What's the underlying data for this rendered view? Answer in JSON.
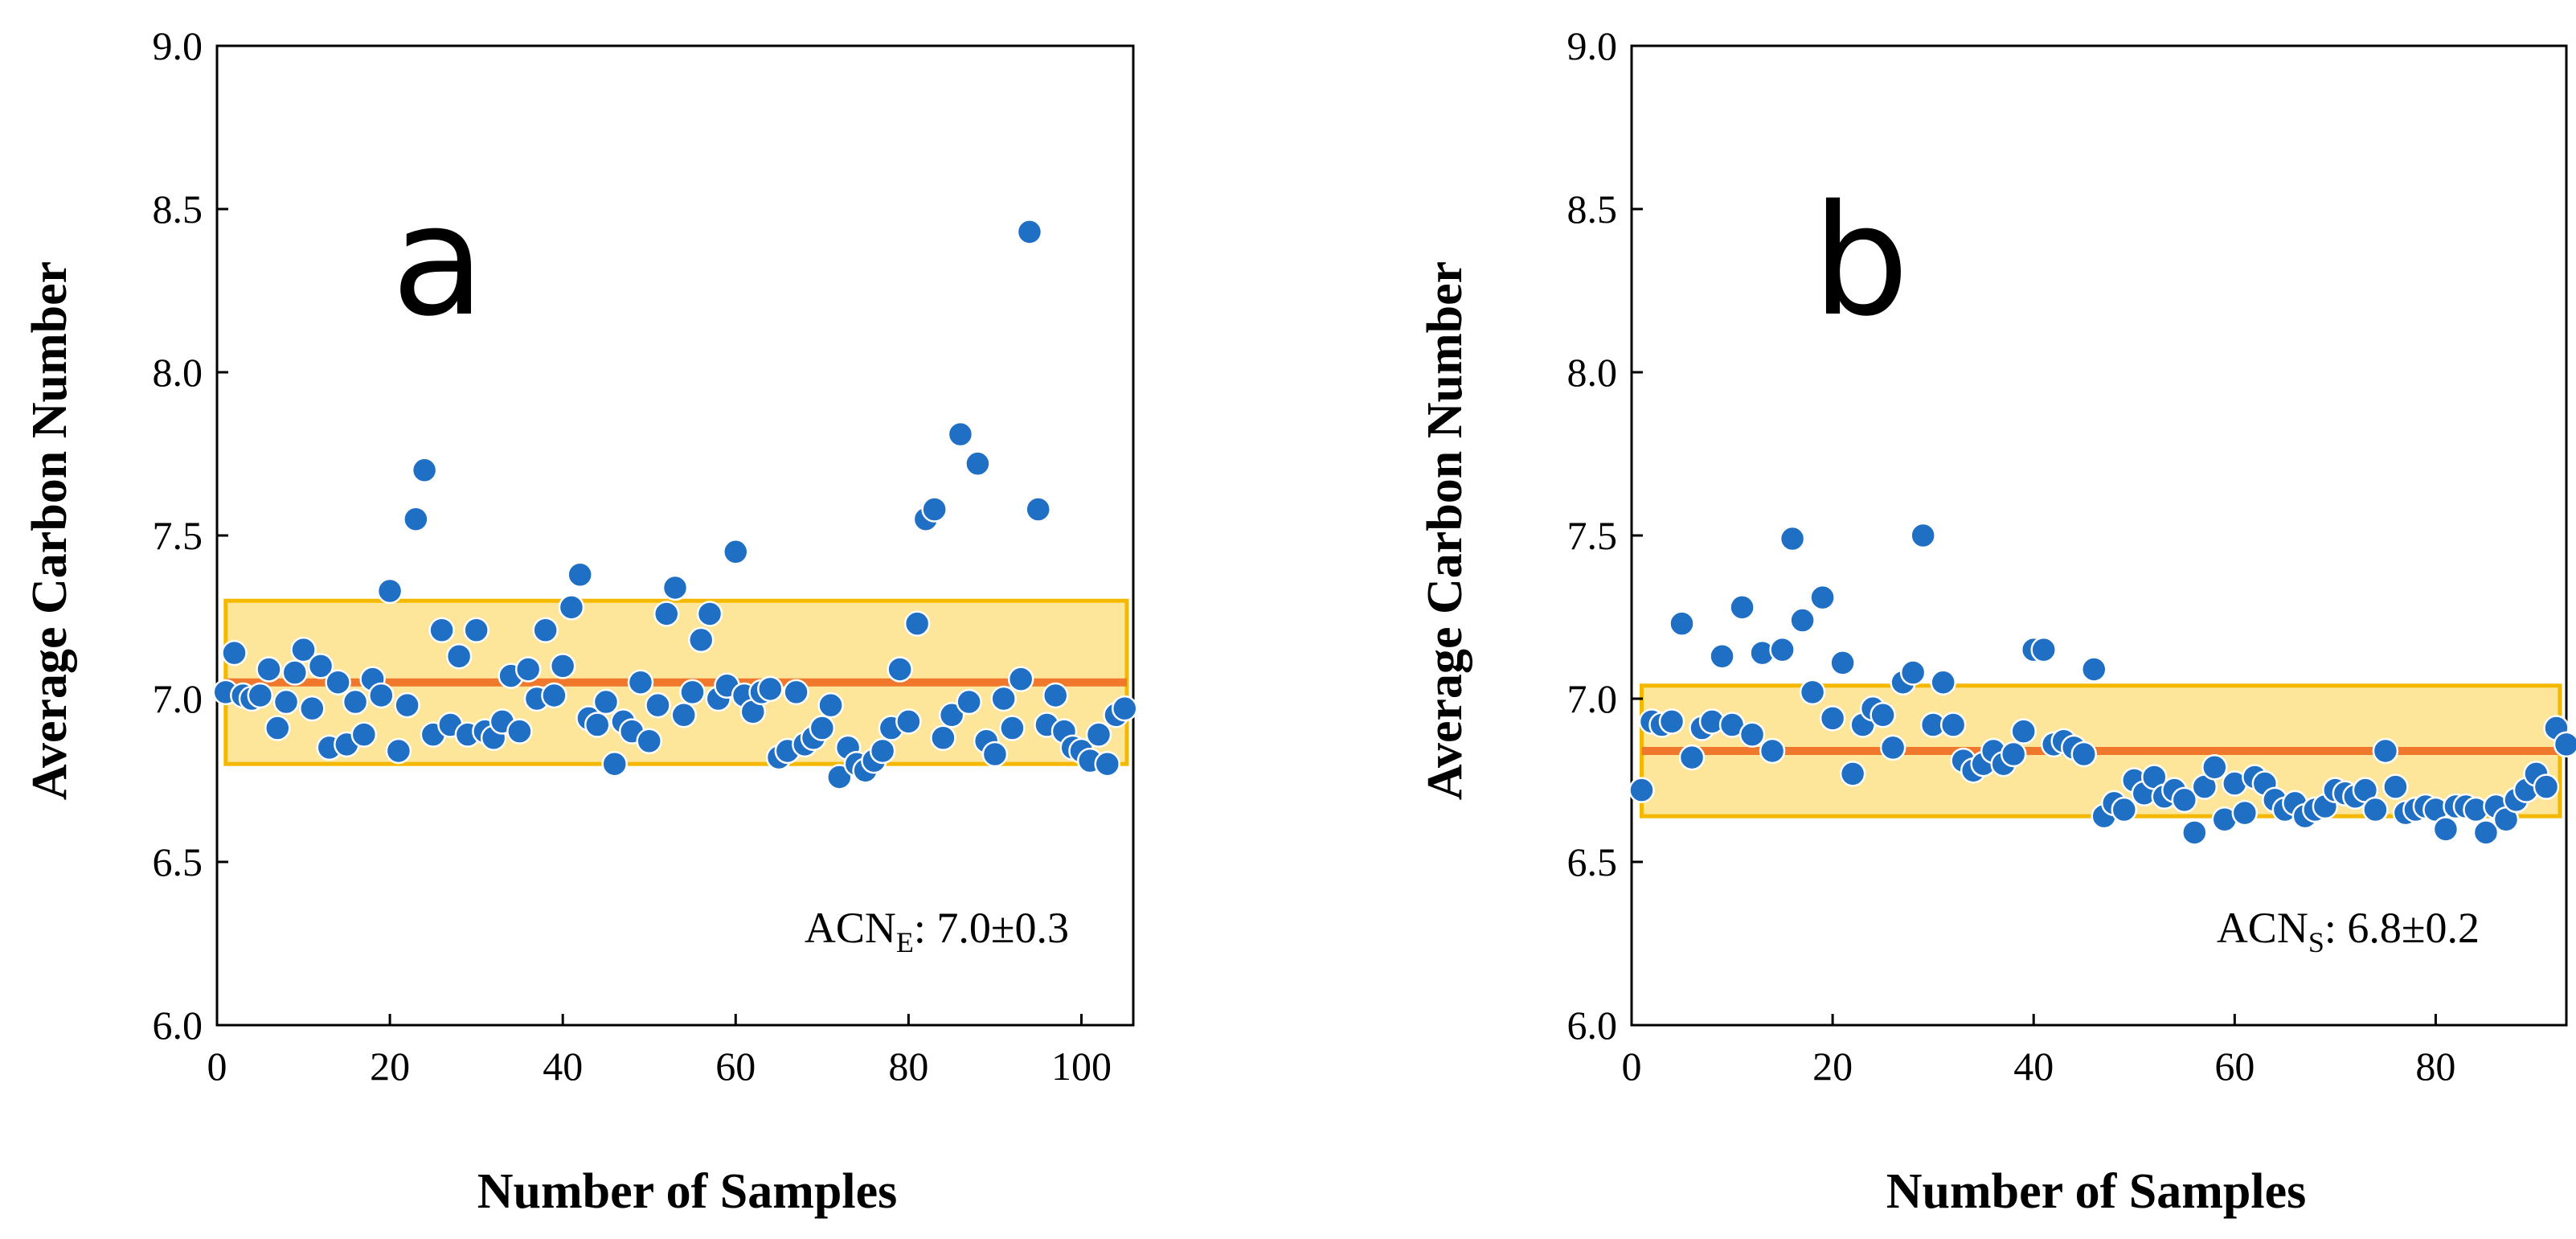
{
  "chart_data": [
    {
      "type": "scatter",
      "panel_label": "a",
      "xlabel": "Number of Samples",
      "ylabel": "Average Carbon Number",
      "xlim": [
        0,
        106
      ],
      "ylim": [
        6.0,
        9.0
      ],
      "xticks": [
        "0",
        "20",
        "40",
        "60",
        "80",
        "100"
      ],
      "yticks": [
        "6.0",
        "6.5",
        "7.0",
        "7.5",
        "8.0",
        "8.5",
        "9.0"
      ],
      "mean": 7.05,
      "band": [
        6.8,
        7.3
      ],
      "annotation": {
        "main": "ACN",
        "sub": "E",
        "rest": ": 7.0±0.3"
      },
      "point_color": "#1f6fc5",
      "band_fill": "#fde59a",
      "band_stroke": "#f5b800",
      "mean_color": "#f0782d",
      "x": [
        1,
        2,
        3,
        4,
        5,
        6,
        7,
        8,
        9,
        10,
        11,
        12,
        13,
        14,
        15,
        16,
        17,
        18,
        19,
        20,
        21,
        22,
        23,
        24,
        25,
        26,
        27,
        28,
        29,
        30,
        31,
        32,
        33,
        34,
        35,
        36,
        37,
        38,
        39,
        40,
        41,
        42,
        43,
        44,
        45,
        46,
        47,
        48,
        49,
        50,
        51,
        52,
        53,
        54,
        55,
        56,
        57,
        58,
        59,
        60,
        61,
        62,
        63,
        64,
        65,
        66,
        67,
        68,
        69,
        70,
        71,
        72,
        73,
        74,
        75,
        76,
        77,
        78,
        79,
        80,
        81,
        82,
        83,
        84,
        85,
        86,
        87,
        88,
        89,
        90,
        91,
        92,
        93,
        94,
        95,
        96,
        97,
        98,
        99,
        100,
        101,
        102,
        103,
        104,
        105
      ],
      "y": [
        7.02,
        7.14,
        7.01,
        7.0,
        7.01,
        7.09,
        6.91,
        6.99,
        7.08,
        7.15,
        6.97,
        7.1,
        6.85,
        7.05,
        6.86,
        6.99,
        6.89,
        7.06,
        7.01,
        7.33,
        6.84,
        6.98,
        7.55,
        7.7,
        6.89,
        7.21,
        6.92,
        7.13,
        6.89,
        7.21,
        6.9,
        6.88,
        6.93,
        7.07,
        6.9,
        7.09,
        7.0,
        7.21,
        7.01,
        7.1,
        7.28,
        7.38,
        6.94,
        6.92,
        6.99,
        6.8,
        6.93,
        6.9,
        7.05,
        6.87,
        6.98,
        7.26,
        7.34,
        6.95,
        7.02,
        7.18,
        7.26,
        7.0,
        7.04,
        7.45,
        7.01,
        6.96,
        7.02,
        7.03,
        6.82,
        6.84,
        7.02,
        6.86,
        6.88,
        6.91,
        6.98,
        6.76,
        6.85,
        6.8,
        6.78,
        6.81,
        6.84,
        6.91,
        7.09,
        6.93,
        7.23,
        7.55,
        7.58,
        6.88,
        6.95,
        7.81,
        6.99,
        7.72,
        6.87,
        6.83,
        7.0,
        6.91,
        7.06,
        8.43,
        7.58,
        6.92,
        7.01,
        6.9,
        6.85,
        6.84,
        6.81,
        6.89,
        6.8,
        6.95,
        6.97
      ]
    },
    {
      "type": "scatter",
      "panel_label": "b",
      "xlabel": "Number of Samples",
      "ylabel": "Average Carbon Number",
      "xlim": [
        0,
        93
      ],
      "ylim": [
        6.0,
        9.0
      ],
      "xticks": [
        "0",
        "20",
        "40",
        "60",
        "80"
      ],
      "yticks": [
        "6.0",
        "6.5",
        "7.0",
        "7.5",
        "8.0",
        "8.5",
        "9.0"
      ],
      "mean": 6.84,
      "band": [
        6.64,
        7.04
      ],
      "annotation": {
        "main": "ACN",
        "sub": "S",
        "rest": ": 6.8±0.2"
      },
      "point_color": "#1f6fc5",
      "band_fill": "#fde59a",
      "band_stroke": "#f5b800",
      "mean_color": "#f0782d",
      "x": [
        1,
        2,
        3,
        4,
        5,
        6,
        7,
        8,
        9,
        10,
        11,
        12,
        13,
        14,
        15,
        16,
        17,
        18,
        19,
        20,
        21,
        22,
        23,
        24,
        25,
        26,
        27,
        28,
        29,
        30,
        31,
        32,
        33,
        34,
        35,
        36,
        37,
        38,
        39,
        40,
        41,
        42,
        43,
        44,
        45,
        46,
        47,
        48,
        49,
        50,
        51,
        52,
        53,
        54,
        55,
        56,
        57,
        58,
        59,
        60,
        61,
        62,
        63,
        64,
        65,
        66,
        67,
        68,
        69,
        70,
        71,
        72,
        73,
        74,
        75,
        76,
        77,
        78,
        79,
        80,
        81,
        82,
        83,
        84,
        85,
        86,
        87,
        88,
        89,
        90,
        91,
        92,
        93
      ],
      "y": [
        6.72,
        6.93,
        6.92,
        6.93,
        7.23,
        6.82,
        6.91,
        6.93,
        7.13,
        6.92,
        7.28,
        6.89,
        7.14,
        6.84,
        7.15,
        7.49,
        7.24,
        7.02,
        7.31,
        6.94,
        7.11,
        6.77,
        6.92,
        6.97,
        6.95,
        6.85,
        7.05,
        7.08,
        7.5,
        6.92,
        7.05,
        6.92,
        6.81,
        6.78,
        6.8,
        6.84,
        6.8,
        6.83,
        6.9,
        7.15,
        7.15,
        6.86,
        6.87,
        6.85,
        6.83,
        7.09,
        6.64,
        6.68,
        6.66,
        6.75,
        6.71,
        6.76,
        6.7,
        6.72,
        6.69,
        6.59,
        6.73,
        6.79,
        6.63,
        6.74,
        6.65,
        6.76,
        6.74,
        6.69,
        6.66,
        6.68,
        6.64,
        6.66,
        6.67,
        6.72,
        6.71,
        6.7,
        6.72,
        6.66,
        6.84,
        6.73,
        6.65,
        6.66,
        6.67,
        6.66,
        6.6,
        6.67,
        6.67,
        6.66,
        6.59,
        6.67,
        6.63,
        6.69,
        6.72,
        6.77,
        6.73,
        6.91,
        6.86
      ]
    }
  ]
}
